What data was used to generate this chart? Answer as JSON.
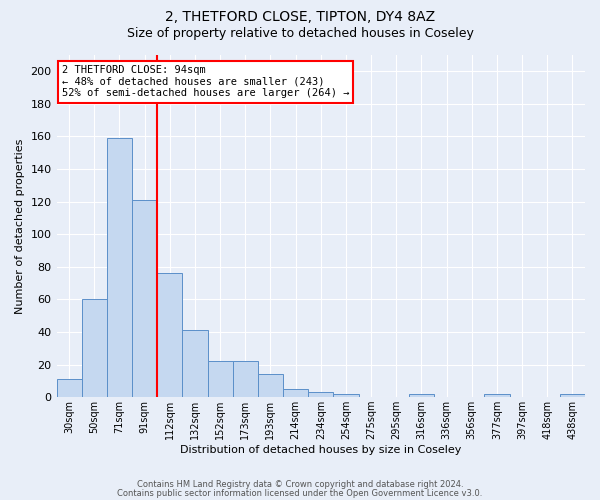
{
  "title_line1": "2, THETFORD CLOSE, TIPTON, DY4 8AZ",
  "title_line2": "Size of property relative to detached houses in Coseley",
  "xlabel": "Distribution of detached houses by size in Coseley",
  "ylabel": "Number of detached properties",
  "categories": [
    "30sqm",
    "50sqm",
    "71sqm",
    "91sqm",
    "112sqm",
    "132sqm",
    "152sqm",
    "173sqm",
    "193sqm",
    "214sqm",
    "234sqm",
    "254sqm",
    "275sqm",
    "295sqm",
    "316sqm",
    "336sqm",
    "356sqm",
    "377sqm",
    "397sqm",
    "418sqm",
    "438sqm"
  ],
  "values": [
    11,
    60,
    159,
    121,
    76,
    41,
    22,
    22,
    14,
    5,
    3,
    2,
    0,
    0,
    2,
    0,
    0,
    2,
    0,
    0,
    2
  ],
  "bar_color": "#c5d8f0",
  "bar_edge_color": "#5b8fc9",
  "red_line_index": 3,
  "annotation_text": "2 THETFORD CLOSE: 94sqm\n← 48% of detached houses are smaller (243)\n52% of semi-detached houses are larger (264) →",
  "annotation_box_color": "white",
  "annotation_box_edge_color": "red",
  "red_line_color": "red",
  "ylim": [
    0,
    210
  ],
  "yticks": [
    0,
    20,
    40,
    60,
    80,
    100,
    120,
    140,
    160,
    180,
    200
  ],
  "background_color": "#e8eef8",
  "grid_color": "white",
  "title_fontsize": 10,
  "subtitle_fontsize": 9,
  "footer_line1": "Contains HM Land Registry data © Crown copyright and database right 2024.",
  "footer_line2": "Contains public sector information licensed under the Open Government Licence v3.0."
}
